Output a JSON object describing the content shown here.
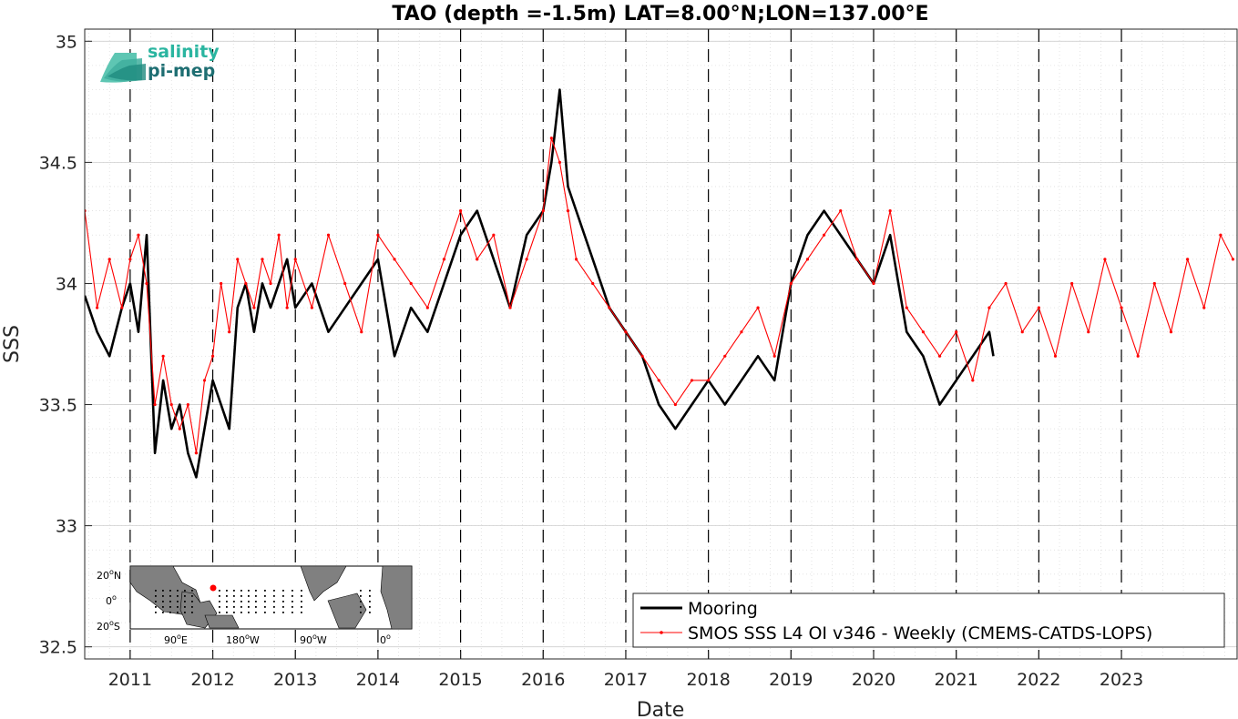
{
  "logo": {
    "line1": "salinity",
    "line2": "pi-mep"
  },
  "inset_map": {
    "lat_labels": [
      "20",
      "N",
      "0",
      "20",
      "S"
    ],
    "lon_labels": [
      "90",
      "E",
      "180",
      "W",
      "90",
      "W",
      "0"
    ],
    "degree_sign": "o"
  },
  "chart_data": {
    "type": "line",
    "title": "TAO (depth =-1.5m) LAT=8.00°N;LON=137.00°E",
    "xlabel": "Date",
    "ylabel": "SSS",
    "xlim": [
      2010.45,
      2024.4
    ],
    "ylim": [
      32.45,
      35.05
    ],
    "x_ticks": [
      "2011",
      "2012",
      "2013",
      "2014",
      "2015",
      "2016",
      "2017",
      "2018",
      "2019",
      "2020",
      "2021",
      "2022",
      "2023"
    ],
    "y_ticks": [
      "32.5",
      "33",
      "33.5",
      "34",
      "34.5",
      "35"
    ],
    "grid": true,
    "minor_grid": true,
    "year_marker_lines": "dashed vertical at each year start",
    "legend_position": "bottom-right",
    "series": [
      {
        "name": "Mooring",
        "color": "#000000",
        "style": "solid thick line",
        "x": [
          2010.45,
          2010.6,
          2010.75,
          2010.9,
          2011.0,
          2011.1,
          2011.2,
          2011.3,
          2011.4,
          2011.5,
          2011.6,
          2011.7,
          2011.8,
          2011.9,
          2012.0,
          2012.1,
          2012.2,
          2012.3,
          2012.4,
          2012.5,
          2012.6,
          2012.7,
          2012.8,
          2012.9,
          2013.0,
          2013.2,
          2013.4,
          2013.6,
          2013.8,
          2014.0,
          2014.2,
          2014.4,
          2014.6,
          2014.8,
          2015.0,
          2015.2,
          2015.4,
          2015.6,
          2015.8,
          2016.0,
          2016.1,
          2016.2,
          2016.3,
          2016.4,
          2016.6,
          2016.8,
          2017.0,
          2017.2,
          2017.4,
          2017.6,
          2017.8,
          2018.0,
          2018.2,
          2018.4,
          2018.6,
          2018.8,
          2019.0,
          2019.2,
          2019.4,
          2019.6,
          2019.8,
          2020.0,
          2020.2,
          2020.4,
          2020.6,
          2020.8,
          2021.0,
          2021.2,
          2021.4,
          2021.45
        ],
        "values": [
          33.95,
          33.8,
          33.7,
          33.9,
          34.0,
          33.8,
          34.2,
          33.3,
          33.6,
          33.4,
          33.5,
          33.3,
          33.2,
          33.4,
          33.6,
          33.5,
          33.4,
          33.9,
          34.0,
          33.8,
          34.0,
          33.9,
          34.0,
          34.1,
          33.9,
          34.0,
          33.8,
          33.9,
          34.0,
          34.1,
          33.7,
          33.9,
          33.8,
          34.0,
          34.2,
          34.3,
          34.1,
          33.9,
          34.2,
          34.3,
          34.5,
          34.8,
          34.4,
          34.3,
          34.1,
          33.9,
          33.8,
          33.7,
          33.5,
          33.4,
          33.5,
          33.6,
          33.5,
          33.6,
          33.7,
          33.6,
          34.0,
          34.2,
          34.3,
          34.2,
          34.1,
          34.0,
          34.2,
          33.8,
          33.7,
          33.5,
          33.6,
          33.7,
          33.8,
          33.7
        ]
      },
      {
        "name": "SMOS SSS L4 OI v346 - Weekly (CMEMS-CATDS-LOPS)",
        "color": "#ff0000",
        "style": "thin line with dot markers",
        "x": [
          2010.45,
          2010.6,
          2010.75,
          2010.9,
          2011.0,
          2011.1,
          2011.2,
          2011.3,
          2011.4,
          2011.5,
          2011.6,
          2011.7,
          2011.8,
          2011.9,
          2012.0,
          2012.1,
          2012.2,
          2012.3,
          2012.4,
          2012.5,
          2012.6,
          2012.7,
          2012.8,
          2012.9,
          2013.0,
          2013.2,
          2013.4,
          2013.6,
          2013.8,
          2014.0,
          2014.2,
          2014.4,
          2014.6,
          2014.8,
          2015.0,
          2015.2,
          2015.4,
          2015.6,
          2015.8,
          2016.0,
          2016.1,
          2016.2,
          2016.3,
          2016.4,
          2016.6,
          2016.8,
          2017.0,
          2017.2,
          2017.4,
          2017.6,
          2017.8,
          2018.0,
          2018.2,
          2018.4,
          2018.6,
          2018.8,
          2019.0,
          2019.2,
          2019.4,
          2019.6,
          2019.8,
          2020.0,
          2020.2,
          2020.4,
          2020.6,
          2020.8,
          2021.0,
          2021.2,
          2021.4,
          2021.6,
          2021.8,
          2022.0,
          2022.2,
          2022.4,
          2022.6,
          2022.8,
          2023.0,
          2023.2,
          2023.4,
          2023.6,
          2023.8,
          2024.0,
          2024.2,
          2024.35
        ],
        "values": [
          34.3,
          33.9,
          34.1,
          33.9,
          34.1,
          34.2,
          34.0,
          33.5,
          33.7,
          33.5,
          33.4,
          33.5,
          33.3,
          33.6,
          33.7,
          34.0,
          33.8,
          34.1,
          34.0,
          33.9,
          34.1,
          34.0,
          34.2,
          33.9,
          34.1,
          33.9,
          34.2,
          34.0,
          33.8,
          34.2,
          34.1,
          34.0,
          33.9,
          34.1,
          34.3,
          34.1,
          34.2,
          33.9,
          34.1,
          34.3,
          34.6,
          34.5,
          34.3,
          34.1,
          34.0,
          33.9,
          33.8,
          33.7,
          33.6,
          33.5,
          33.6,
          33.6,
          33.7,
          33.8,
          33.9,
          33.7,
          34.0,
          34.1,
          34.2,
          34.3,
          34.1,
          34.0,
          34.3,
          33.9,
          33.8,
          33.7,
          33.8,
          33.6,
          33.9,
          34.0,
          33.8,
          33.9,
          33.7,
          34.0,
          33.8,
          34.1,
          33.9,
          33.7,
          34.0,
          33.8,
          34.1,
          33.9,
          34.2,
          34.1
        ]
      }
    ]
  }
}
